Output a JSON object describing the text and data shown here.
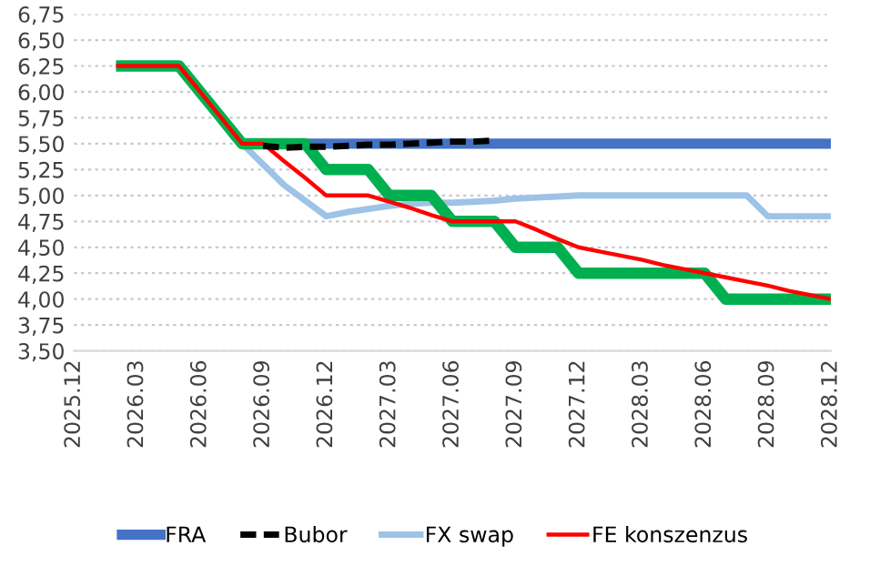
{
  "chart_data": {
    "type": "line",
    "categories": [
      "2025.12",
      null,
      null,
      "2026.03",
      null,
      null,
      "2026.06",
      null,
      null,
      "2026.09",
      null,
      null,
      "2026.12",
      null,
      null,
      "2027.03",
      null,
      null,
      "2027.06",
      null,
      null,
      "2027.09",
      null,
      null,
      "2027.12",
      null,
      null,
      "2028.03",
      null,
      null,
      "2028.06",
      null,
      null,
      "2028.09",
      null,
      null,
      "2028.12"
    ],
    "series": [
      {
        "name": "FRA",
        "color": "#4472c4",
        "line_style": "solid",
        "values": [
          null,
          null,
          null,
          null,
          null,
          null,
          null,
          null,
          5.5,
          5.5,
          5.5,
          5.5,
          5.5,
          5.5,
          5.5,
          5.5,
          5.5,
          5.5,
          5.5,
          5.5,
          5.5,
          5.5,
          5.5,
          5.5,
          5.5,
          5.5,
          5.5,
          5.5,
          5.5,
          5.5,
          5.5,
          5.5,
          5.5,
          5.5,
          5.5,
          5.5,
          5.5
        ]
      },
      {
        "name": "Bubor",
        "color": "#000000",
        "line_style": "dashed",
        "values": [
          null,
          null,
          null,
          null,
          null,
          null,
          null,
          null,
          null,
          5.48,
          5.46,
          5.47,
          5.47,
          5.48,
          5.49,
          5.49,
          5.5,
          5.51,
          5.52,
          5.52,
          5.53,
          null,
          null,
          null,
          null,
          null,
          null,
          null,
          null,
          null,
          null,
          null,
          null,
          null,
          null,
          null,
          null
        ]
      },
      {
        "name": "FX swap",
        "color": "#9dc3e6",
        "line_style": "solid",
        "values": [
          null,
          null,
          null,
          null,
          null,
          null,
          null,
          null,
          5.5,
          5.3,
          5.1,
          4.95,
          4.8,
          4.84,
          4.87,
          4.9,
          4.92,
          4.93,
          4.93,
          4.94,
          4.95,
          4.97,
          4.98,
          4.99,
          5.0,
          5.0,
          5.0,
          5.0,
          5.0,
          5.0,
          5.0,
          5.0,
          5.0,
          4.8,
          4.8,
          4.8,
          4.8
        ]
      },
      {
        "name": null,
        "color": "#00b050",
        "line_style": "solid",
        "values": [
          null,
          null,
          6.25,
          6.25,
          6.25,
          6.25,
          6.0,
          5.75,
          5.5,
          5.5,
          5.5,
          5.5,
          5.25,
          5.25,
          5.25,
          5.0,
          5.0,
          5.0,
          4.75,
          4.75,
          4.75,
          4.5,
          4.5,
          4.5,
          4.25,
          4.25,
          4.25,
          4.25,
          4.25,
          4.25,
          4.25,
          4.0,
          4.0,
          4.0,
          4.0,
          4.0,
          4.0
        ]
      },
      {
        "name": "FE konszenzus",
        "color": "#ff0000",
        "line_style": "solid",
        "values": [
          null,
          null,
          6.25,
          6.25,
          6.25,
          6.25,
          6.0,
          5.75,
          5.5,
          5.5,
          5.33,
          5.17,
          5.0,
          5.0,
          5.0,
          4.94,
          4.88,
          4.81,
          4.75,
          4.75,
          4.75,
          4.75,
          4.67,
          4.58,
          4.5,
          4.46,
          4.42,
          4.38,
          4.33,
          4.29,
          4.25,
          4.21,
          4.17,
          4.13,
          4.08,
          4.04,
          4.0
        ]
      }
    ],
    "ylim": [
      3.5,
      6.75
    ],
    "yticks": [
      {
        "value": 3.5,
        "label": "3,50"
      },
      {
        "value": 3.75,
        "label": "3,75"
      },
      {
        "value": 4.0,
        "label": "4,00"
      },
      {
        "value": 4.25,
        "label": "4,25"
      },
      {
        "value": 4.5,
        "label": "4,50"
      },
      {
        "value": 4.75,
        "label": "4,75"
      },
      {
        "value": 5.0,
        "label": "5,00"
      },
      {
        "value": 5.25,
        "label": "5,25"
      },
      {
        "value": 5.5,
        "label": "5,50"
      },
      {
        "value": 5.75,
        "label": "5,75"
      },
      {
        "value": 6.0,
        "label": "6,00"
      },
      {
        "value": 6.25,
        "label": "6,25"
      },
      {
        "value": 6.5,
        "label": "6,50"
      },
      {
        "value": 6.75,
        "label": "6,75"
      }
    ],
    "grid": "y",
    "legend": "bottom"
  }
}
